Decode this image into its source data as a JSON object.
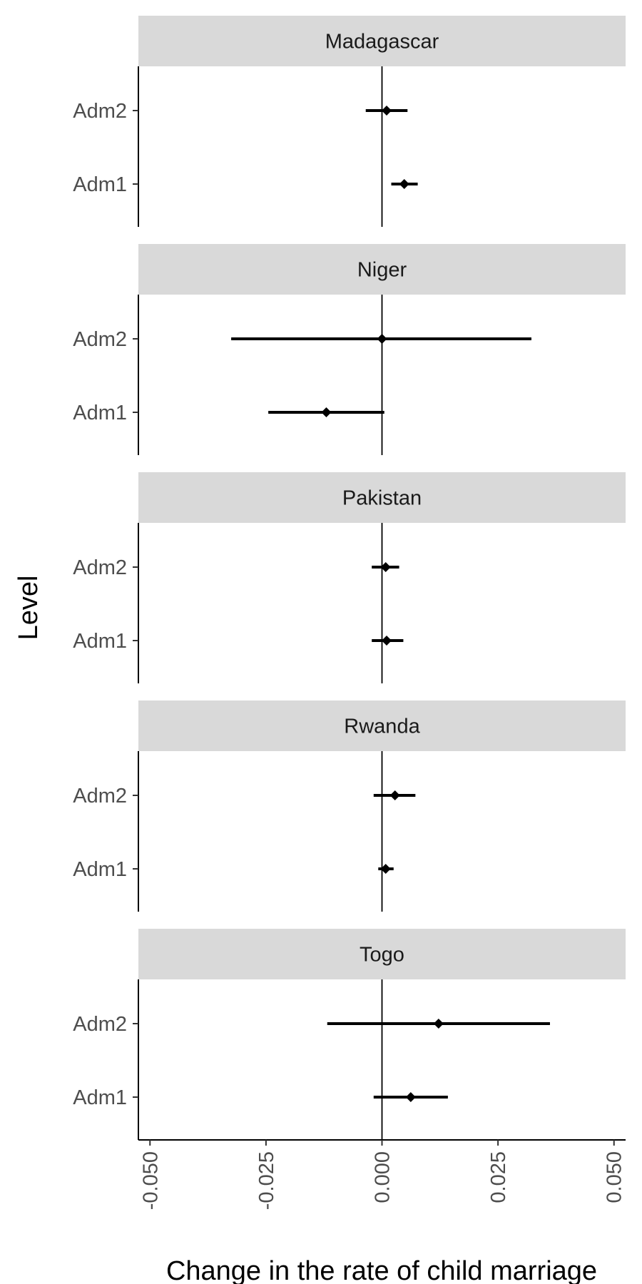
{
  "chart_data": {
    "type": "forest-plot",
    "facet_by": "country",
    "xlabel": "Change in the rate of child marriage",
    "ylabel": "Level",
    "xlim": [
      -0.0525,
      0.0525
    ],
    "x_ticks": [
      -0.05,
      -0.025,
      0.0,
      0.025,
      0.05
    ],
    "x_tick_labels": [
      "-0.050",
      "-0.025",
      "0.000",
      "0.025",
      "0.050"
    ],
    "reference_line": 0,
    "levels": [
      "Adm2",
      "Adm1"
    ],
    "panels": [
      {
        "name": "Madagascar",
        "points": [
          {
            "level": "Adm2",
            "estimate": 0.001,
            "low": -0.0035,
            "high": 0.0055
          },
          {
            "level": "Adm1",
            "estimate": 0.0048,
            "low": 0.002,
            "high": 0.0077
          }
        ]
      },
      {
        "name": "Niger",
        "points": [
          {
            "level": "Adm2",
            "estimate": 0.0,
            "low": -0.0325,
            "high": 0.0322
          },
          {
            "level": "Adm1",
            "estimate": -0.012,
            "low": -0.0245,
            "high": 0.0005
          }
        ]
      },
      {
        "name": "Pakistan",
        "points": [
          {
            "level": "Adm2",
            "estimate": 0.0008,
            "low": -0.0022,
            "high": 0.0037
          },
          {
            "level": "Adm1",
            "estimate": 0.001,
            "low": -0.0022,
            "high": 0.0046
          }
        ]
      },
      {
        "name": "Rwanda",
        "points": [
          {
            "level": "Adm2",
            "estimate": 0.0028,
            "low": -0.0018,
            "high": 0.0072
          },
          {
            "level": "Adm1",
            "estimate": 0.0008,
            "low": -0.0008,
            "high": 0.0025
          }
        ]
      },
      {
        "name": "Togo",
        "points": [
          {
            "level": "Adm2",
            "estimate": 0.0122,
            "low": -0.0118,
            "high": 0.0362
          },
          {
            "level": "Adm1",
            "estimate": 0.0062,
            "low": -0.0018,
            "high": 0.0142
          }
        ]
      }
    ],
    "grid": false,
    "legend": "none",
    "colors": {
      "strip_fill": "#d9d9d9",
      "marks": "#000000",
      "tick_text": "#4d4d4d"
    }
  }
}
